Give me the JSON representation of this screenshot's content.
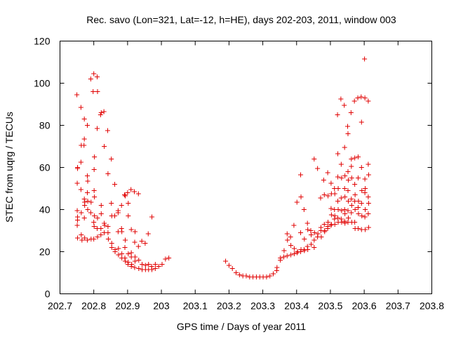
{
  "chart_data": {
    "type": "scatter",
    "title": "Rec. savo (Lon=321, Lat=-12, h=HE), days 202-203, 2011, window 003",
    "xlabel": "GPS time / Days of year 2011",
    "ylabel": "STEC from uqrg / TECUs",
    "xlim": [
      202.7,
      203.8
    ],
    "ylim": [
      0,
      120
    ],
    "x_ticks": [
      "202.7",
      "202.8",
      "202.9",
      "203",
      "203.1",
      "203.2",
      "203.3",
      "203.4",
      "203.5",
      "203.6",
      "203.7",
      "203.8"
    ],
    "y_ticks": [
      "0",
      "20",
      "40",
      "60",
      "80",
      "100",
      "120"
    ],
    "grid": false,
    "legend": "none",
    "marker": "plus",
    "color": "#e00000",
    "series": [
      {
        "values": [
          [
            202.75,
            94.5
          ],
          [
            202.752,
            60
          ],
          [
            202.752,
            59.5
          ],
          [
            202.751,
            52.5
          ],
          [
            202.751,
            39.5
          ],
          [
            202.752,
            36.5
          ],
          [
            202.752,
            35
          ],
          [
            202.751,
            32.5
          ],
          [
            202.752,
            26.5
          ],
          [
            202.762,
            88.5
          ],
          [
            202.763,
            70.5
          ],
          [
            202.762,
            62.5
          ],
          [
            202.762,
            49.5
          ],
          [
            202.763,
            38.5
          ],
          [
            202.763,
            28
          ],
          [
            202.765,
            25.5
          ],
          [
            202.772,
            83
          ],
          [
            202.772,
            73.5
          ],
          [
            202.771,
            70.5
          ],
          [
            202.772,
            45
          ],
          [
            202.773,
            43.5
          ],
          [
            202.773,
            42
          ],
          [
            202.772,
            36
          ],
          [
            202.773,
            26.5
          ],
          [
            202.781,
            80
          ],
          [
            202.781,
            56
          ],
          [
            202.782,
            53.5
          ],
          [
            202.781,
            48
          ],
          [
            202.782,
            44
          ],
          [
            202.782,
            40
          ],
          [
            202.781,
            25.5
          ],
          [
            202.791,
            102
          ],
          [
            202.792,
            43.5
          ],
          [
            202.791,
            38.5
          ],
          [
            202.792,
            26
          ],
          [
            202.8,
            104.5
          ],
          [
            202.798,
            96
          ],
          [
            202.802,
            65
          ],
          [
            202.801,
            59
          ],
          [
            202.801,
            49
          ],
          [
            202.802,
            46
          ],
          [
            202.802,
            37
          ],
          [
            202.8,
            34
          ],
          [
            202.801,
            32
          ],
          [
            202.8,
            26
          ],
          [
            202.81,
            103
          ],
          [
            202.811,
            96
          ],
          [
            202.81,
            78.5
          ],
          [
            202.811,
            36
          ],
          [
            202.81,
            31
          ],
          [
            202.811,
            27
          ],
          [
            202.82,
            85
          ],
          [
            202.822,
            86
          ],
          [
            202.822,
            42
          ],
          [
            202.822,
            38
          ],
          [
            202.821,
            31
          ],
          [
            202.821,
            28
          ],
          [
            202.83,
            86.5
          ],
          [
            202.831,
            70
          ],
          [
            202.831,
            33.5
          ],
          [
            202.832,
            32.5
          ],
          [
            202.831,
            29
          ],
          [
            202.841,
            77.5
          ],
          [
            202.842,
            57
          ],
          [
            202.842,
            32
          ],
          [
            202.842,
            29
          ],
          [
            202.843,
            26
          ],
          [
            202.852,
            64
          ],
          [
            202.852,
            43
          ],
          [
            202.853,
            37
          ],
          [
            202.853,
            24
          ],
          [
            202.853,
            22
          ],
          [
            202.862,
            52
          ],
          [
            202.862,
            37
          ],
          [
            202.863,
            21
          ],
          [
            202.863,
            20
          ],
          [
            202.872,
            39.5
          ],
          [
            202.872,
            38.5
          ],
          [
            202.872,
            29.5
          ],
          [
            202.873,
            21.5
          ],
          [
            202.873,
            18.5
          ],
          [
            202.882,
            42
          ],
          [
            202.882,
            31
          ],
          [
            202.883,
            29.5
          ],
          [
            202.883,
            19
          ],
          [
            202.883,
            17
          ],
          [
            202.891,
            47
          ],
          [
            202.893,
            46.5
          ],
          [
            202.893,
            25.5
          ],
          [
            202.892,
            22
          ],
          [
            202.892,
            17
          ],
          [
            202.893,
            15.5
          ],
          [
            202.9,
            48
          ],
          [
            202.902,
            43
          ],
          [
            202.902,
            37
          ],
          [
            202.902,
            19
          ],
          [
            202.902,
            15
          ],
          [
            202.901,
            14
          ],
          [
            202.91,
            49.5
          ],
          [
            202.911,
            30.5
          ],
          [
            202.911,
            19.5
          ],
          [
            202.911,
            17.5
          ],
          [
            202.912,
            14
          ],
          [
            202.911,
            13
          ],
          [
            202.92,
            48.5
          ],
          [
            202.922,
            29.5
          ],
          [
            202.921,
            24.5
          ],
          [
            202.922,
            17.5
          ],
          [
            202.922,
            15.5
          ],
          [
            202.921,
            12.5
          ],
          [
            202.932,
            47.5
          ],
          [
            202.932,
            22.5
          ],
          [
            202.933,
            16
          ],
          [
            202.933,
            12
          ],
          [
            202.942,
            25
          ],
          [
            202.943,
            14
          ],
          [
            202.943,
            11.5
          ],
          [
            202.952,
            24
          ],
          [
            202.953,
            13.5
          ],
          [
            202.953,
            11.5
          ],
          [
            202.961,
            28.5
          ],
          [
            202.962,
            14
          ],
          [
            202.962,
            11.5
          ],
          [
            202.972,
            36.5
          ],
          [
            202.971,
            13
          ],
          [
            202.972,
            11.5
          ],
          [
            202.982,
            14
          ],
          [
            202.982,
            12
          ],
          [
            202.992,
            13
          ],
          [
            203.002,
            14
          ],
          [
            203.012,
            16.5
          ],
          [
            203.022,
            17
          ],
          [
            203.19,
            15.5
          ],
          [
            203.2,
            13.5
          ],
          [
            203.21,
            12
          ],
          [
            203.221,
            10
          ],
          [
            203.231,
            9
          ],
          [
            203.241,
            8.5
          ],
          [
            203.251,
            8.5
          ],
          [
            203.261,
            8
          ],
          [
            203.271,
            8
          ],
          [
            203.281,
            8
          ],
          [
            203.291,
            8
          ],
          [
            203.301,
            8
          ],
          [
            203.311,
            8
          ],
          [
            203.321,
            8.5
          ],
          [
            203.331,
            9.5
          ],
          [
            203.341,
            11
          ],
          [
            203.342,
            12.5
          ],
          [
            203.352,
            16
          ],
          [
            203.352,
            17
          ],
          [
            203.362,
            17.5
          ],
          [
            203.363,
            20.5
          ],
          [
            203.372,
            28.5
          ],
          [
            203.373,
            25.5
          ],
          [
            203.372,
            18
          ],
          [
            203.382,
            27
          ],
          [
            203.383,
            23
          ],
          [
            203.383,
            18.5
          ],
          [
            203.392,
            32.5
          ],
          [
            203.393,
            21.5
          ],
          [
            203.393,
            19
          ],
          [
            203.401,
            43.5
          ],
          [
            203.402,
            19.5
          ],
          [
            203.403,
            20
          ],
          [
            203.412,
            56.5
          ],
          [
            203.413,
            46
          ],
          [
            203.412,
            29
          ],
          [
            203.413,
            21
          ],
          [
            203.412,
            20
          ],
          [
            203.422,
            40
          ],
          [
            203.423,
            26
          ],
          [
            203.422,
            21
          ],
          [
            203.423,
            20.5
          ],
          [
            203.432,
            33.5
          ],
          [
            203.433,
            30.5
          ],
          [
            203.432,
            22.5
          ],
          [
            203.433,
            21
          ],
          [
            203.442,
            30
          ],
          [
            203.443,
            28
          ],
          [
            203.443,
            23.5
          ],
          [
            203.452,
            64
          ],
          [
            203.453,
            29
          ],
          [
            203.452,
            25.5
          ],
          [
            203.452,
            22
          ],
          [
            203.462,
            59.5
          ],
          [
            203.463,
            28.5
          ],
          [
            203.462,
            27
          ],
          [
            203.471,
            45.5
          ],
          [
            203.472,
            31.5
          ],
          [
            203.472,
            30
          ],
          [
            203.473,
            27
          ],
          [
            203.48,
            54
          ],
          [
            203.482,
            47
          ],
          [
            203.482,
            33
          ],
          [
            203.483,
            30
          ],
          [
            203.483,
            29.5
          ],
          [
            203.492,
            57.5
          ],
          [
            203.493,
            46.5
          ],
          [
            203.493,
            34
          ],
          [
            203.492,
            32
          ],
          [
            203.492,
            31
          ],
          [
            203.502,
            52.5
          ],
          [
            203.503,
            47.5
          ],
          [
            203.502,
            40.5
          ],
          [
            203.503,
            37.5
          ],
          [
            203.503,
            33
          ],
          [
            203.502,
            32.5
          ],
          [
            203.512,
            50
          ],
          [
            203.513,
            47.5
          ],
          [
            203.512,
            40
          ],
          [
            203.513,
            37
          ],
          [
            203.512,
            35.5
          ],
          [
            203.513,
            33
          ],
          [
            203.521,
            85
          ],
          [
            203.522,
            66.5
          ],
          [
            203.522,
            55.5
          ],
          [
            203.523,
            50
          ],
          [
            203.522,
            44
          ],
          [
            203.523,
            40
          ],
          [
            203.522,
            36
          ],
          [
            203.523,
            34
          ],
          [
            203.531,
            92.5
          ],
          [
            203.532,
            61.5
          ],
          [
            203.533,
            55
          ],
          [
            203.532,
            45.5
          ],
          [
            203.533,
            39.5
          ],
          [
            203.532,
            35.5
          ],
          [
            203.533,
            34
          ],
          [
            203.541,
            89.5
          ],
          [
            203.542,
            69.5
          ],
          [
            203.543,
            56
          ],
          [
            203.542,
            50
          ],
          [
            203.543,
            46
          ],
          [
            203.542,
            40
          ],
          [
            203.543,
            38
          ],
          [
            203.542,
            34.5
          ],
          [
            203.543,
            33.5
          ],
          [
            203.551,
            79.5
          ],
          [
            203.552,
            76
          ],
          [
            203.552,
            58
          ],
          [
            203.553,
            54
          ],
          [
            203.552,
            49
          ],
          [
            203.553,
            44
          ],
          [
            203.552,
            39.5
          ],
          [
            203.553,
            36
          ],
          [
            203.552,
            34
          ],
          [
            203.561,
            86
          ],
          [
            203.562,
            64
          ],
          [
            203.562,
            60.5
          ],
          [
            203.563,
            55
          ],
          [
            203.562,
            45
          ],
          [
            203.563,
            42
          ],
          [
            203.562,
            38.5
          ],
          [
            203.563,
            34
          ],
          [
            203.571,
            91.5
          ],
          [
            203.572,
            64.5
          ],
          [
            203.572,
            52
          ],
          [
            203.573,
            47
          ],
          [
            203.572,
            44
          ],
          [
            203.573,
            40
          ],
          [
            203.572,
            34
          ],
          [
            203.573,
            31
          ],
          [
            203.581,
            93
          ],
          [
            203.582,
            65
          ],
          [
            203.582,
            55
          ],
          [
            203.583,
            44
          ],
          [
            203.582,
            41
          ],
          [
            203.583,
            38
          ],
          [
            203.582,
            31
          ],
          [
            203.591,
            93.5
          ],
          [
            203.592,
            81.5
          ],
          [
            203.592,
            60
          ],
          [
            203.593,
            49
          ],
          [
            203.592,
            43
          ],
          [
            203.593,
            37
          ],
          [
            203.592,
            30.5
          ],
          [
            203.601,
            111.5
          ],
          [
            203.602,
            93
          ],
          [
            203.602,
            54.5
          ],
          [
            203.603,
            50
          ],
          [
            203.602,
            48
          ],
          [
            203.603,
            40
          ],
          [
            203.602,
            36.5
          ],
          [
            203.603,
            30.5
          ],
          [
            203.612,
            91.5
          ],
          [
            203.612,
            61.5
          ],
          [
            203.613,
            56.5
          ],
          [
            203.612,
            46
          ],
          [
            203.613,
            43
          ],
          [
            203.612,
            38
          ],
          [
            203.613,
            31.5
          ]
        ]
      }
    ]
  }
}
